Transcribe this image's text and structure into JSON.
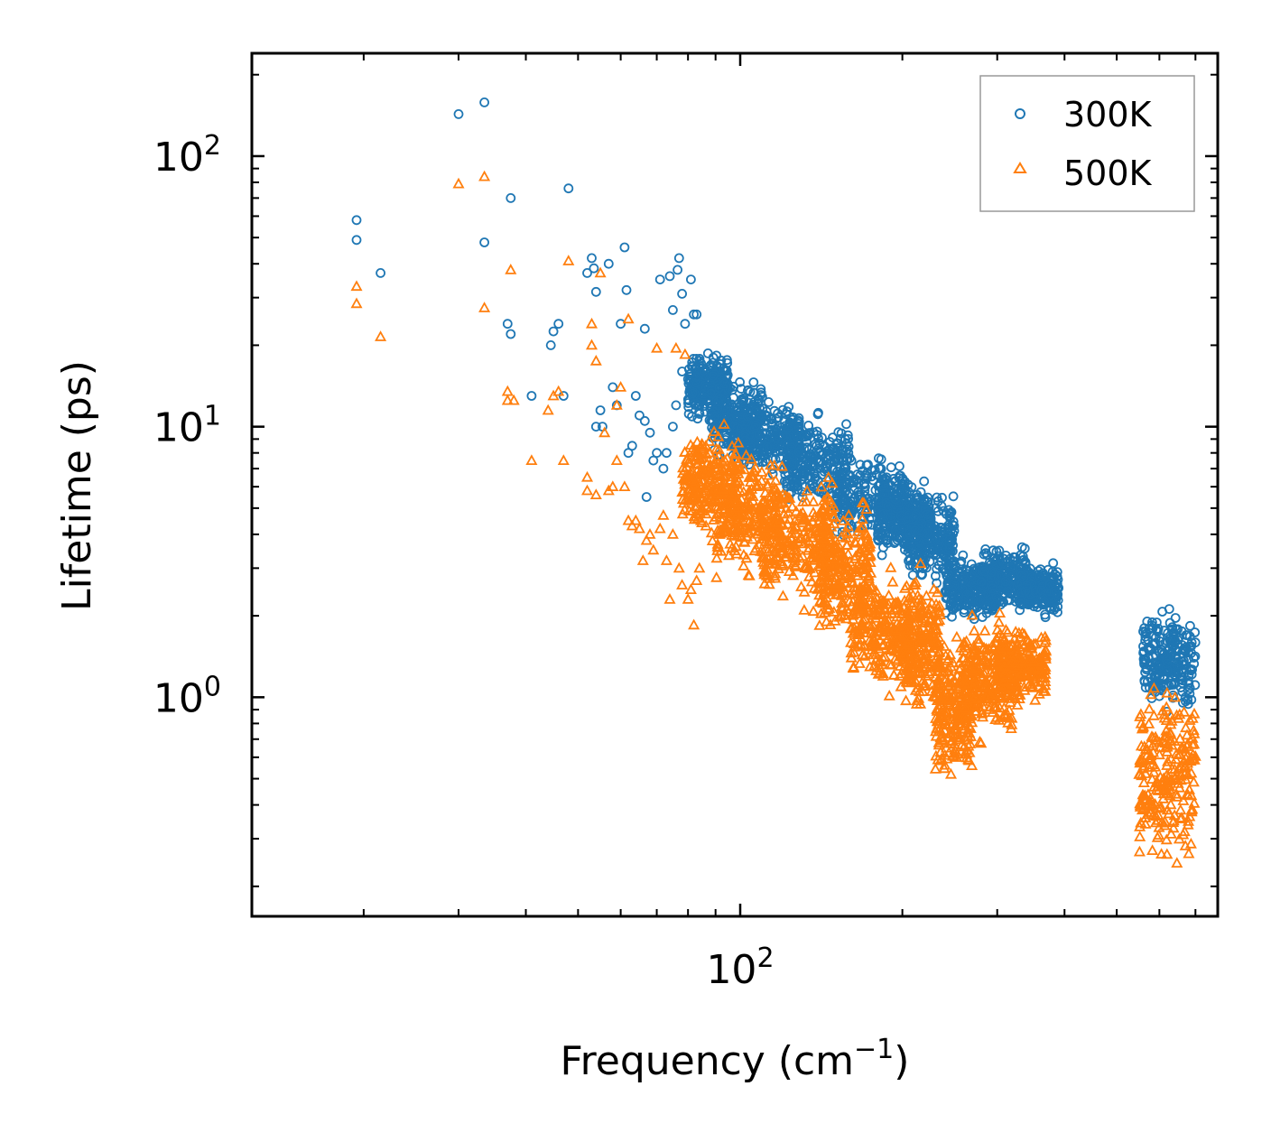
{
  "chart_data": {
    "type": "scatter",
    "title": "",
    "xlabel": "Frequency (cm",
    "xlabel_sup": "−1",
    "xlabel_end": ")",
    "ylabel": "Lifetime (ps)",
    "xscale": "log",
    "yscale": "log",
    "xlim": [
      12.4,
      770
    ],
    "ylim": [
      0.155,
      240
    ],
    "x_ticks": [
      {
        "value": 100,
        "base": "10",
        "exp": "2"
      }
    ],
    "y_ticks": [
      {
        "value": 1,
        "base": "10",
        "exp": "0"
      },
      {
        "value": 10,
        "base": "10",
        "exp": "1"
      },
      {
        "value": 100,
        "base": "10",
        "exp": "2"
      }
    ],
    "legend_position": "top-right",
    "series": [
      {
        "name": "300K",
        "marker": "circle",
        "color": "#1f77b4",
        "points": [
          [
            19.4,
            58
          ],
          [
            19.4,
            49
          ],
          [
            21.5,
            37
          ],
          [
            30,
            143
          ],
          [
            33.5,
            158
          ],
          [
            33.5,
            48
          ],
          [
            37.5,
            70
          ],
          [
            37,
            24
          ],
          [
            37.5,
            22
          ],
          [
            41,
            13
          ],
          [
            44.5,
            20
          ],
          [
            45,
            22.5
          ],
          [
            46,
            24
          ],
          [
            47,
            13
          ],
          [
            48,
            76
          ],
          [
            52,
            37
          ],
          [
            53,
            42
          ],
          [
            53.5,
            38.5
          ],
          [
            54,
            31.5
          ],
          [
            54,
            10
          ],
          [
            55,
            11.5
          ],
          [
            55.5,
            10
          ],
          [
            57,
            40
          ],
          [
            58,
            14
          ],
          [
            59,
            12
          ],
          [
            60,
            24
          ],
          [
            61,
            46
          ],
          [
            61.5,
            32
          ],
          [
            62,
            8
          ],
          [
            63,
            8.5
          ],
          [
            64,
            13
          ],
          [
            65,
            11
          ],
          [
            66.5,
            10.5
          ],
          [
            66.5,
            23
          ],
          [
            67,
            5.5
          ],
          [
            68,
            9.5
          ],
          [
            69,
            7.5
          ],
          [
            70,
            8
          ],
          [
            71,
            35
          ],
          [
            72,
            7
          ],
          [
            73,
            8
          ],
          [
            74,
            36
          ],
          [
            75,
            10
          ],
          [
            75,
            27
          ],
          [
            76,
            12
          ],
          [
            76.5,
            38
          ],
          [
            77,
            42
          ],
          [
            78,
            31
          ],
          [
            78,
            16
          ],
          [
            79,
            24
          ],
          [
            80,
            15
          ],
          [
            81,
            35
          ],
          [
            82,
            26
          ],
          [
            82,
            14
          ],
          [
            83,
            26
          ],
          [
            84,
            12
          ]
        ],
        "clusters": [
          {
            "x": [
              80,
              95
            ],
            "y": [
              10,
              20
            ]
          },
          {
            "x": [
              88,
              110
            ],
            "y": [
              7,
              16
            ]
          },
          {
            "x": [
              100,
              130
            ],
            "y": [
              6,
              13
            ]
          },
          {
            "x": [
              120,
              160
            ],
            "y": [
              4.5,
              12
            ]
          },
          {
            "x": [
              150,
              205
            ],
            "y": [
              3.5,
              8.5
            ]
          },
          {
            "x": [
              180,
              225
            ],
            "y": [
              3,
              7
            ]
          },
          {
            "x": [
              205,
              250
            ],
            "y": [
              2.5,
              6
            ]
          },
          {
            "x": [
              240,
              300
            ],
            "y": [
              1.8,
              3.5
            ]
          },
          {
            "x": [
              280,
              340
            ],
            "y": [
              2,
              3.8
            ]
          },
          {
            "x": [
              330,
              390
            ],
            "y": [
              1.9,
              3.3
            ]
          },
          {
            "x": [
              560,
              700
            ],
            "y": [
              0.8,
              2.3
            ]
          }
        ]
      },
      {
        "name": "500K",
        "marker": "triangle",
        "color": "#ff7f0e",
        "points": [
          [
            19.4,
            33
          ],
          [
            19.4,
            28.5
          ],
          [
            21.5,
            21.5
          ],
          [
            30,
            79
          ],
          [
            33.5,
            84
          ],
          [
            33.5,
            27.5
          ],
          [
            37,
            13.5
          ],
          [
            37,
            12.5
          ],
          [
            37.5,
            38
          ],
          [
            38,
            12.5
          ],
          [
            41,
            7.5
          ],
          [
            44,
            11.5
          ],
          [
            45,
            13
          ],
          [
            46,
            13.5
          ],
          [
            47,
            7.5
          ],
          [
            48,
            41
          ],
          [
            52,
            6.5
          ],
          [
            52,
            5.8
          ],
          [
            53,
            24
          ],
          [
            53,
            20
          ],
          [
            54,
            17.5
          ],
          [
            54,
            5.6
          ],
          [
            55,
            37
          ],
          [
            56,
            9.5
          ],
          [
            57,
            5.8
          ],
          [
            58,
            6
          ],
          [
            59,
            7.5
          ],
          [
            59,
            12
          ],
          [
            60,
            14
          ],
          [
            61,
            6
          ],
          [
            62,
            25
          ],
          [
            62,
            4.5
          ],
          [
            63,
            4.3
          ],
          [
            64,
            4.5
          ],
          [
            65,
            4.2
          ],
          [
            66,
            3.2
          ],
          [
            67,
            3.8
          ],
          [
            68,
            4
          ],
          [
            69,
            3.5
          ],
          [
            70,
            19.5
          ],
          [
            71,
            4.2
          ],
          [
            72,
            4.7
          ],
          [
            73,
            3.2
          ],
          [
            74,
            2.3
          ],
          [
            75,
            4
          ],
          [
            76,
            19.5
          ],
          [
            77,
            3
          ],
          [
            78,
            2.6
          ],
          [
            79,
            18.5
          ],
          [
            80,
            2.3
          ],
          [
            81,
            2.5
          ],
          [
            82,
            1.85
          ],
          [
            83,
            2.7
          ],
          [
            84,
            3
          ]
        ],
        "clusters": [
          {
            "x": [
              78,
              100
            ],
            "y": [
              3.5,
              11
            ]
          },
          {
            "x": [
              90,
              120
            ],
            "y": [
              2.5,
              9
            ]
          },
          {
            "x": [
              110,
              150
            ],
            "y": [
              2,
              7
            ]
          },
          {
            "x": [
              140,
              175
            ],
            "y": [
              1.5,
              6
            ]
          },
          {
            "x": [
              160,
              210
            ],
            "y": [
              0.9,
              3.5
            ]
          },
          {
            "x": [
              200,
              235
            ],
            "y": [
              0.8,
              3.2
            ]
          },
          {
            "x": [
              230,
              270
            ],
            "y": [
              0.45,
              1.9
            ]
          },
          {
            "x": [
              260,
              320
            ],
            "y": [
              0.6,
              2.2
            ]
          },
          {
            "x": [
              300,
              370
            ],
            "y": [
              0.9,
              1.9
            ]
          },
          {
            "x": [
              550,
              700
            ],
            "y": [
              0.2,
              1.3
            ]
          }
        ]
      }
    ]
  }
}
